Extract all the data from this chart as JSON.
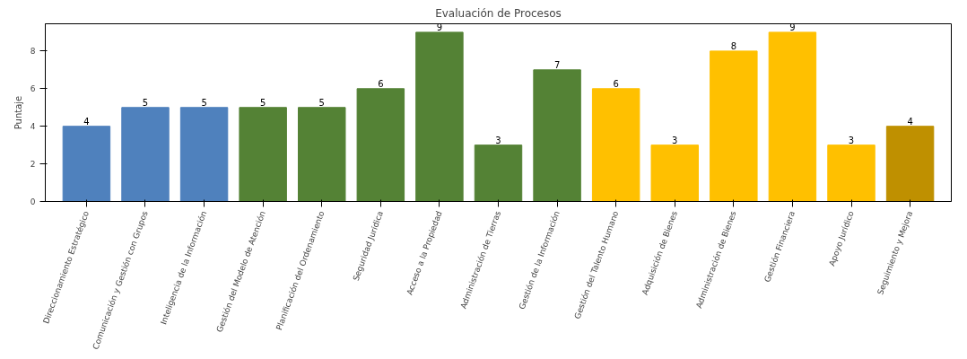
{
  "chart_data": {
    "type": "bar",
    "title": "Evaluación de Procesos",
    "ylabel": "Puntaje",
    "categories": [
      "Direccionamiento Estratégico",
      "Comunicación y Gestión con Grupos",
      "Inteligencia de la Información",
      "Gestión del Modelo de Atención",
      "Planificación del Ordenamiento",
      "Seguridad Jurídica",
      "Acceso a la Propiedad",
      "Administración de Tierras",
      "Gestión de la Información",
      "Gestión del Talento Humano",
      "Adquisición de Bienes",
      "Administración de Bienes",
      "Gestión Financiera",
      "Apoyo Jurídico",
      "Seguimiento y Mejora"
    ],
    "values": [
      4,
      5,
      5,
      5,
      5,
      6,
      9,
      3,
      7,
      6,
      3,
      8,
      9,
      3,
      4
    ],
    "colors": [
      "#4f81bd",
      "#4f81bd",
      "#4f81bd",
      "#548235",
      "#548235",
      "#548235",
      "#548235",
      "#548235",
      "#548235",
      "#ffc000",
      "#ffc000",
      "#ffc000",
      "#ffc000",
      "#ffc000",
      "#bf9000"
    ],
    "ylim": [
      0,
      9.45
    ],
    "yticks": [
      0,
      2,
      4,
      6,
      8
    ],
    "data_labels": true,
    "grid": false
  }
}
